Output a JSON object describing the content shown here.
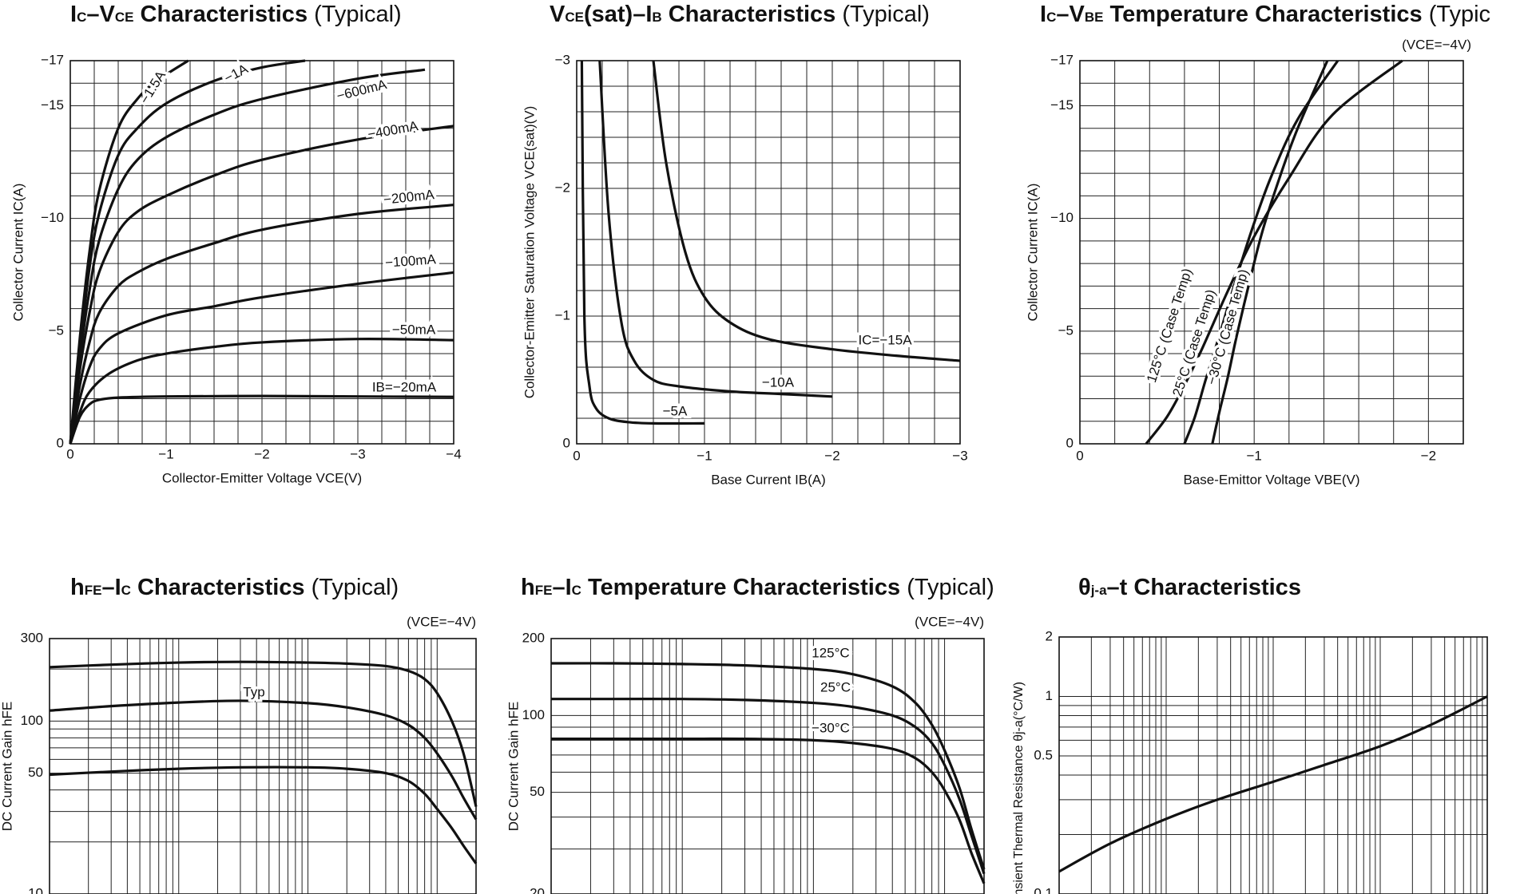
{
  "charts": [
    {
      "id": "ic-vce",
      "title": {
        "pre": "I",
        "s1": "C",
        "mid": "–V",
        "s2": "CE",
        "post": " Characteristics",
        "note": "(Typical)"
      },
      "xlabel": "Collector-Emitter Voltage VCE(V)",
      "ylabel": "Collector Current IC(A)",
      "condition": "",
      "x_ticks": [
        "0",
        "−1",
        "−2",
        "−3",
        "−4"
      ],
      "y_ticks": [
        "0",
        "−5",
        "−10",
        "−15",
        "−17"
      ]
    },
    {
      "id": "vcesat-ib",
      "title": {
        "pre": "V",
        "s1": "CE",
        "mid": "(sat)–I",
        "s2": "B",
        "post": " Characteristics",
        "note": "(Typical)"
      },
      "xlabel": "Base Current IB(A)",
      "ylabel": "Collector-Emitter Saturation Voltage VCE(sat)(V)",
      "condition": "",
      "x_ticks": [
        "0",
        "−1",
        "−2",
        "−3"
      ],
      "y_ticks": [
        "0",
        "−1",
        "−2",
        "−3"
      ]
    },
    {
      "id": "ic-vbe-temp",
      "title": {
        "pre": "I",
        "s1": "C",
        "mid": "–V",
        "s2": "BE",
        "post": " Temperature  Characteristics",
        "note": "(Typic"
      },
      "xlabel": "Base-Emittor Voltage VBE(V)",
      "ylabel": "Collector Current IC(A)",
      "condition": "(VCE=−4V)",
      "x_ticks": [
        "0",
        "−1",
        "−2"
      ],
      "y_ticks": [
        "0",
        "−5",
        "−10",
        "−15",
        "−17"
      ]
    },
    {
      "id": "hfe-ic",
      "title": {
        "pre": "h",
        "s1": "FE",
        "mid": "–I",
        "s2": "C",
        "post": " Characteristics",
        "note": "(Typical)"
      },
      "xlabel": "",
      "ylabel": "DC Current Gain hFE",
      "condition": "(VCE=−4V)",
      "x_ticks": [],
      "y_ticks": [
        "10",
        "50",
        "100",
        "300"
      ]
    },
    {
      "id": "hfe-ic-temp",
      "title": {
        "pre": "h",
        "s1": "FE",
        "mid": "–I",
        "s2": "C",
        "post": " Temperature  Characteristics",
        "note": "(Typical)"
      },
      "xlabel": "",
      "ylabel": "DC Current Gain hFE",
      "condition": "(VCE=−4V)",
      "x_ticks": [],
      "y_ticks": [
        "20",
        "50",
        "100",
        "200"
      ]
    },
    {
      "id": "theta-t",
      "title": {
        "pre": "θ",
        "s1": "j-a",
        "mid": "–t",
        "s2": "",
        "post": " Characteristics",
        "note": ""
      },
      "xlabel": "",
      "ylabel": "Transient Thermal Resistance θj-a(°C/W)",
      "condition": "",
      "x_ticks": [],
      "y_ticks": [
        "0.1",
        "0.5",
        "1",
        "2"
      ]
    }
  ],
  "chart_data": [
    {
      "type": "line",
      "title": "IC–VCE Characteristics (Typical)",
      "xlabel": "Collector-Emitter Voltage VCE(V)",
      "ylabel": "Collector Current IC(A)",
      "xlim": [
        0,
        -4
      ],
      "ylim": [
        0,
        -17
      ],
      "grid": true,
      "series": [
        {
          "name": "IB=−20mA",
          "x": [
            0,
            -0.1,
            -0.2,
            -0.3,
            -0.5,
            -1,
            -2,
            -3,
            -4
          ],
          "y": [
            0,
            -1.2,
            -1.75,
            -1.95,
            -2.05,
            -2.1,
            -2.12,
            -2.1,
            -2.08
          ]
        },
        {
          "name": "−50mA",
          "x": [
            0,
            -0.1,
            -0.2,
            -0.4,
            -0.7,
            -1,
            -1.5,
            -2,
            -3,
            -4
          ],
          "y": [
            0,
            -1.4,
            -2.3,
            -3.1,
            -3.7,
            -4.0,
            -4.3,
            -4.5,
            -4.65,
            -4.6
          ]
        },
        {
          "name": "−100mA",
          "x": [
            0,
            -0.1,
            -0.2,
            -0.3,
            -0.5,
            -1,
            -1.5,
            -2,
            -3,
            -4
          ],
          "y": [
            0,
            -2,
            -3.4,
            -4.2,
            -4.9,
            -5.7,
            -6.1,
            -6.5,
            -7.1,
            -7.6
          ]
        },
        {
          "name": "−200mA",
          "x": [
            0,
            -0.1,
            -0.2,
            -0.3,
            -0.5,
            -0.7,
            -1,
            -1.5,
            -2,
            -3,
            -4
          ],
          "y": [
            0,
            -2.6,
            -4.5,
            -5.8,
            -7.0,
            -7.6,
            -8.2,
            -8.9,
            -9.5,
            -10.2,
            -10.6
          ]
        },
        {
          "name": "−400mA",
          "x": [
            0,
            -0.1,
            -0.2,
            -0.3,
            -0.5,
            -0.7,
            -1,
            -1.5,
            -2,
            -3,
            -4
          ],
          "y": [
            0,
            -3.3,
            -5.8,
            -7.6,
            -9.4,
            -10.3,
            -11.0,
            -11.9,
            -12.6,
            -13.5,
            -14.1
          ]
        },
        {
          "name": "−600mA",
          "x": [
            0,
            -0.1,
            -0.2,
            -0.3,
            -0.5,
            -0.7,
            -1,
            -1.5,
            -2,
            -3,
            -3.7
          ],
          "y": [
            0,
            -3.8,
            -6.8,
            -9.0,
            -11.3,
            -12.6,
            -13.6,
            -14.6,
            -15.3,
            -16.2,
            -16.6
          ]
        },
        {
          "name": "−1A",
          "x": [
            0,
            -0.1,
            -0.2,
            -0.3,
            -0.5,
            -0.7,
            -1,
            -1.5,
            -2,
            -2.45
          ],
          "y": [
            0,
            -4.2,
            -7.8,
            -10.2,
            -12.8,
            -14.0,
            -15.1,
            -16.1,
            -16.7,
            -17
          ]
        },
        {
          "name": "−1.5A",
          "x": [
            0,
            -0.1,
            -0.2,
            -0.3,
            -0.5,
            -0.7,
            -0.9,
            -1.23
          ],
          "y": [
            0,
            -4.7,
            -8.5,
            -11.2,
            -14.0,
            -15.3,
            -16.1,
            -17
          ]
        }
      ]
    },
    {
      "type": "line",
      "title": "VCE(sat)–IB Characteristics (Typical)",
      "xlabel": "Base Current IB(A)",
      "ylabel": "Collector-Emitter Saturation Voltage VCE(sat)(V)",
      "xlim": [
        0,
        -3
      ],
      "ylim": [
        0,
        -3
      ],
      "grid": true,
      "series": [
        {
          "name": "−5A",
          "x": [
            -0.04,
            -0.06,
            -0.1,
            -0.15,
            -0.25,
            -0.4,
            -0.6,
            -1.0
          ],
          "y": [
            -3,
            -1.0,
            -0.45,
            -0.28,
            -0.2,
            -0.17,
            -0.16,
            -0.16
          ]
        },
        {
          "name": "−10A",
          "x": [
            -0.18,
            -0.25,
            -0.35,
            -0.45,
            -0.6,
            -0.8,
            -1.2,
            -1.6,
            -2.0
          ],
          "y": [
            -3,
            -1.8,
            -0.95,
            -0.65,
            -0.5,
            -0.45,
            -0.41,
            -0.39,
            -0.37
          ]
        },
        {
          "name": "IC=−15A",
          "x": [
            -0.6,
            -0.7,
            -0.85,
            -1.0,
            -1.2,
            -1.5,
            -2.0,
            -2.5,
            -3.0
          ],
          "y": [
            -3,
            -2.2,
            -1.5,
            -1.15,
            -0.95,
            -0.82,
            -0.74,
            -0.69,
            -0.65
          ]
        }
      ]
    },
    {
      "type": "line",
      "title": "IC–VBE Temperature Characteristics (Typical)",
      "xlabel": "Base-Emittor Voltage VBE(V)",
      "ylabel": "Collector Current IC(A)",
      "xlim": [
        0,
        -2.2
      ],
      "ylim": [
        0,
        -17
      ],
      "grid": true,
      "series": [
        {
          "name": "125°C (Case Temp)",
          "x": [
            -0.38,
            -0.5,
            -0.6,
            -0.7,
            -0.85,
            -1.0,
            -1.2,
            -1.45,
            -1.85
          ],
          "y": [
            0,
            -1.2,
            -2.6,
            -4.2,
            -6.8,
            -9.2,
            -11.8,
            -14.6,
            -17
          ]
        },
        {
          "name": "25°C (Case Temp)",
          "x": [
            -0.6,
            -0.66,
            -0.72,
            -0.8,
            -0.9,
            -1.0,
            -1.1,
            -1.25,
            -1.48
          ],
          "y": [
            0,
            -1.2,
            -2.8,
            -4.8,
            -7.4,
            -9.8,
            -11.9,
            -14.4,
            -17
          ]
        },
        {
          "name": "−30°C (Case Temp)",
          "x": [
            -0.76,
            -0.8,
            -0.85,
            -0.9,
            -0.98,
            -1.05,
            -1.15,
            -1.25,
            -1.42
          ],
          "y": [
            0,
            -1.4,
            -3.0,
            -4.8,
            -7.4,
            -9.5,
            -11.9,
            -14.0,
            -17
          ]
        }
      ]
    },
    {
      "type": "line",
      "title": "hFE–IC Characteristics (Typical)",
      "xlabel": "",
      "ylabel": "DC Current Gain hFE",
      "xscale": "log",
      "yscale": "log",
      "xlim": [
        0.01,
        20
      ],
      "ylim": [
        10,
        300
      ],
      "grid": true,
      "series": [
        {
          "name": "",
          "x": [
            0.01,
            0.03,
            0.1,
            0.3,
            1,
            2,
            4,
            6,
            8,
            10,
            13,
            16,
            20
          ],
          "y": [
            205,
            212,
            218,
            220,
            218,
            215,
            208,
            195,
            175,
            145,
            100,
            65,
            32
          ]
        },
        {
          "name": "Typ",
          "x": [
            0.01,
            0.03,
            0.1,
            0.3,
            1,
            2,
            4,
            6,
            8,
            10,
            13,
            16,
            20
          ],
          "y": [
            115,
            122,
            128,
            131,
            127,
            120,
            108,
            95,
            80,
            65,
            48,
            36,
            27
          ]
        },
        {
          "name": "",
          "x": [
            0.01,
            0.03,
            0.1,
            0.3,
            1,
            2,
            4,
            6,
            8,
            10,
            13,
            16,
            20
          ],
          "y": [
            49,
            51,
            53,
            54,
            54,
            53,
            50,
            45,
            38,
            31,
            24,
            19,
            15
          ]
        }
      ]
    },
    {
      "type": "line",
      "title": "hFE–IC Temperature Characteristics (Typical)",
      "xlabel": "",
      "ylabel": "DC Current Gain hFE",
      "xscale": "log",
      "yscale": "log",
      "xlim": [
        0.01,
        20
      ],
      "ylim": [
        20,
        200
      ],
      "grid": true,
      "series": [
        {
          "name": "125°C",
          "x": [
            0.01,
            0.03,
            0.1,
            0.3,
            1,
            2,
            4,
            6,
            8,
            10,
            13,
            16,
            20
          ],
          "y": [
            160,
            160,
            159,
            157,
            152,
            145,
            130,
            112,
            92,
            73,
            52,
            36,
            25
          ]
        },
        {
          "name": "25°C",
          "x": [
            0.01,
            0.03,
            0.1,
            0.3,
            1,
            2,
            4,
            6,
            8,
            10,
            13,
            16,
            20
          ],
          "y": [
            116,
            116,
            116,
            115,
            112,
            108,
            100,
            90,
            78,
            64,
            47,
            34,
            24
          ]
        },
        {
          "name": "−30°C",
          "x": [
            0.01,
            0.03,
            0.1,
            0.3,
            1,
            2,
            4,
            6,
            8,
            10,
            13,
            16,
            20
          ],
          "y": [
            81,
            81,
            81,
            81,
            80,
            78,
            74,
            68,
            60,
            51,
            39,
            29,
            22
          ]
        }
      ]
    },
    {
      "type": "line",
      "title": "θj-a–t Characteristics",
      "xlabel": "",
      "ylabel": "Transient Thermal Resistance θj-a(°C/W)",
      "xscale": "log",
      "yscale": "log",
      "xlim": [
        0.001,
        10
      ],
      "ylim": [
        0.1,
        2
      ],
      "grid": true,
      "series": [
        {
          "name": "",
          "x": [
            0.001,
            0.003,
            0.01,
            0.03,
            0.1,
            0.3,
            1,
            3,
            10
          ],
          "y": [
            0.13,
            0.18,
            0.24,
            0.3,
            0.37,
            0.45,
            0.56,
            0.72,
            1.0
          ]
        }
      ]
    }
  ]
}
